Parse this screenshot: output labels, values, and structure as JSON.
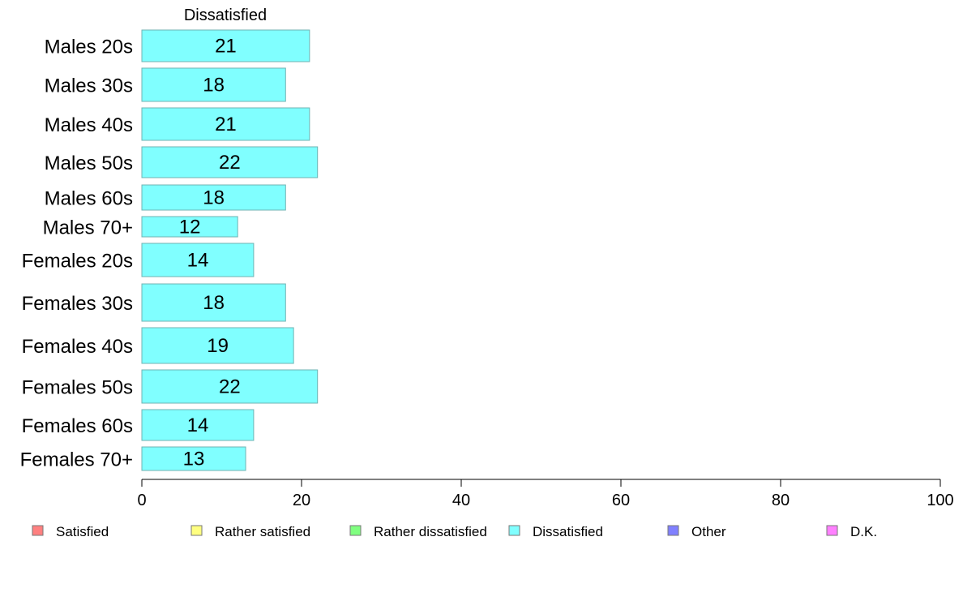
{
  "chart_data": {
    "type": "bar",
    "orientation": "horizontal",
    "series_title": "Dissatisfied",
    "categories": [
      "Males 20s",
      "Males 30s",
      "Males 40s",
      "Males 50s",
      "Males 60s",
      "Males 70+",
      "Females 20s",
      "Females 30s",
      "Females 40s",
      "Females 50s",
      "Females 60s",
      "Females 70+"
    ],
    "series": [
      {
        "name": "Dissatisfied",
        "color": "#80ffff",
        "values": [
          21,
          18,
          21,
          22,
          18,
          12,
          14,
          18,
          19,
          22,
          14,
          13
        ]
      }
    ],
    "xlim": [
      0,
      100
    ],
    "xticks": [
      0,
      20,
      40,
      60,
      80,
      100
    ],
    "grid": false,
    "legend_position": "bottom",
    "legend": [
      {
        "label": "Satisfied",
        "color": "#ff8080"
      },
      {
        "label": "Rather satisfied",
        "color": "#ffff80"
      },
      {
        "label": "Rather dissatisfied",
        "color": "#80ff80"
      },
      {
        "label": "Dissatisfied",
        "color": "#80ffff"
      },
      {
        "label": "Other",
        "color": "#8080ff"
      },
      {
        "label": "D.K.",
        "color": "#ff80ff"
      }
    ]
  }
}
